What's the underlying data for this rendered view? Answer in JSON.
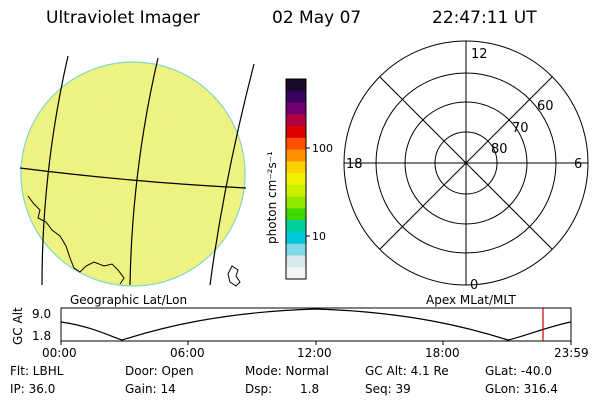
{
  "header": {
    "instrument": "Ultraviolet Imager",
    "date": "02 May 07",
    "time": "22:47:11 UT"
  },
  "colorbar": {
    "unit_label": "photon cm⁻²s⁻¹",
    "ticks": [
      "100",
      "10"
    ],
    "colors": [
      "#1a0a2a",
      "#3a0060",
      "#700070",
      "#b00040",
      "#e00000",
      "#ff5000",
      "#ff9000",
      "#ffd000",
      "#f0f000",
      "#c8f000",
      "#90e800",
      "#40d800",
      "#00d0a0",
      "#00c8d8",
      "#80d8e8",
      "#d8e8ee",
      "#f4f4f4"
    ]
  },
  "geo_map": {
    "label": "Geographic Lat/Lon",
    "fill": "#eef27a"
  },
  "polar_plot": {
    "label": "Apex MLat/MLT",
    "mlt_labels": {
      "top": "12",
      "left": "18",
      "right": "6",
      "bottom": "0"
    },
    "mlat_labels": [
      "60",
      "70",
      "80"
    ]
  },
  "altitude_plot": {
    "y_label": "GC Alt",
    "y_ticks": [
      "9.0",
      "1.8"
    ],
    "x_ticks": [
      "00:00",
      "06:00",
      "12:00",
      "18:00",
      "23:59"
    ],
    "current_marker_color": "#cc0000"
  },
  "status": {
    "flt": "Flt: LBHL",
    "ip": "IP: 36.0",
    "door": "Door: Open",
    "gain": "Gain: 14",
    "mode": "Mode: Normal",
    "dsp_label": "Dsp:",
    "dsp_value": "1.8",
    "gc_alt": "GC Alt: 4.1 Re",
    "seq": "Seq: 39",
    "glat": "GLat: -40.0",
    "glon": "GLon: 316.4"
  }
}
